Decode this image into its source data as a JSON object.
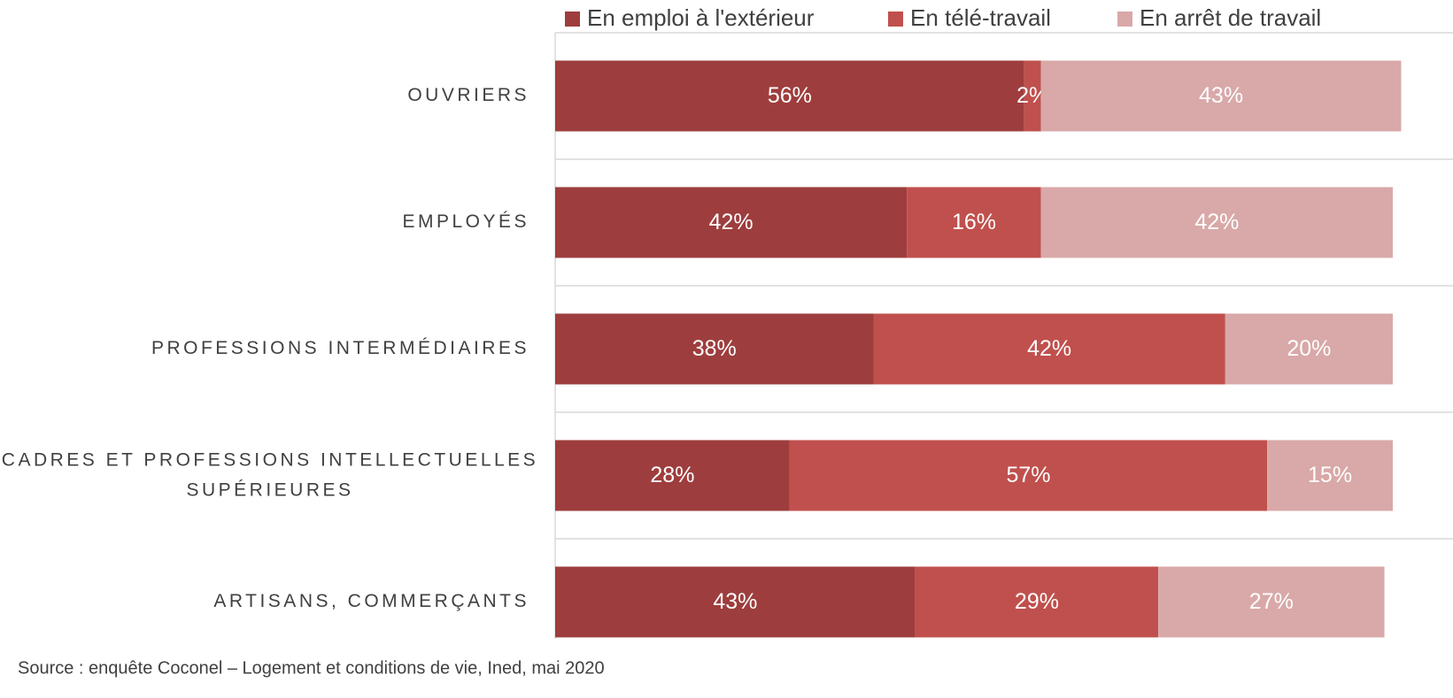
{
  "chart_data": {
    "type": "bar",
    "orientation": "horizontal",
    "stacked": true,
    "categories": [
      "OUVRIERS",
      "EMPLOYÉS",
      "PROFESSIONS INTERMÉDIAIRES",
      "CADRES ET PROFESSIONS INTELLECTUELLES SUPÉRIEURES",
      "ARTISANS, COMMERÇANTS"
    ],
    "series": [
      {
        "name": "En emploi à l'extérieur",
        "color": "#9e3d3d",
        "values": [
          56,
          42,
          38,
          28,
          43
        ],
        "value_labels": [
          "56%",
          "42%",
          "38%",
          "28%",
          "43%"
        ]
      },
      {
        "name": "En télé-travail",
        "color": "#c0504d",
        "values": [
          2,
          16,
          42,
          57,
          29
        ],
        "value_labels": [
          "2%",
          "16%",
          "42%",
          "57%",
          "29%"
        ]
      },
      {
        "name": "En arrêt de travail",
        "color": "#d9a8a8",
        "values": [
          43,
          42,
          20,
          15,
          27
        ],
        "value_labels": [
          "43%",
          "42%",
          "20%",
          "15%",
          "27%"
        ]
      }
    ],
    "xlim": [
      0,
      100
    ],
    "legend": "top",
    "source": "Source : enquête Coconel – Logement et conditions de vie, Ined, mai 2020"
  }
}
